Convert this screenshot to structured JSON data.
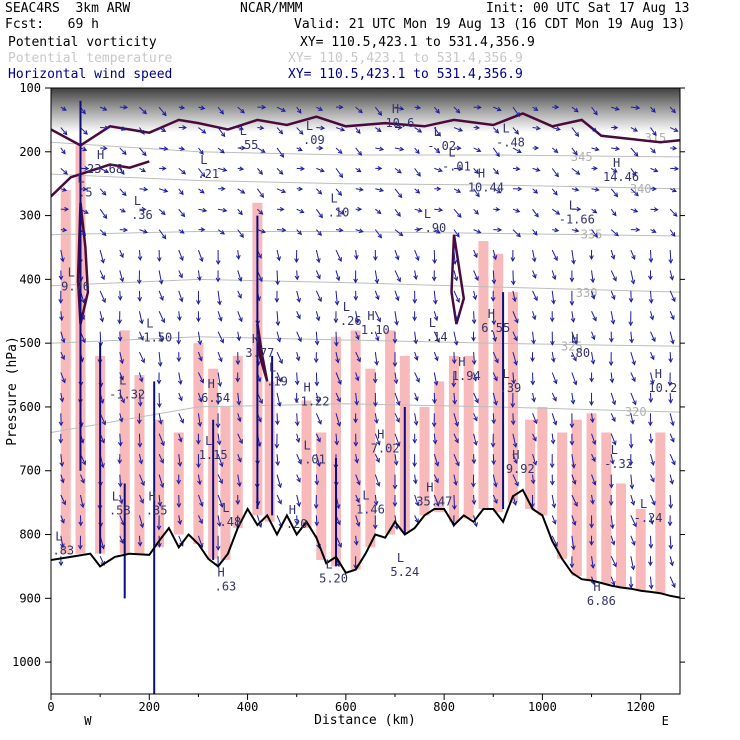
{
  "header": {
    "model": "SEAC4RS  3km ARW",
    "org": "NCAR/MMM",
    "init": "Init: 00 UTC Sat 17 Aug 13",
    "fcst": "Fcst:   69 h",
    "valid": "Valid: 21 UTC Mon 19 Aug 13 (16 CDT Mon 19 Aug 13)"
  },
  "fields": [
    {
      "name": "Potential vorticity",
      "xy": "XY= 110.5,423.1 to 531.4,356.9",
      "color": "#000000"
    },
    {
      "name": "Potential temperature",
      "xy": "XY= 110.5,423.1 to 531.4,356.9",
      "color": "#c8c8c8"
    },
    {
      "name": "Horizontal wind speed",
      "xy": "XY= 110.5,423.1 to 531.4,356.9",
      "color": "#00008b"
    }
  ],
  "chart_data": {
    "type": "cross-section",
    "xlabel": "Distance (km)",
    "ylabel": "Pressure (hPa)",
    "xlim": [
      0,
      1280
    ],
    "ylim": [
      1050,
      100
    ],
    "x_ticks": [
      0,
      200,
      400,
      600,
      800,
      1000,
      1200
    ],
    "y_ticks": [
      100,
      200,
      300,
      400,
      500,
      600,
      700,
      800,
      900,
      1000
    ],
    "x_ends": [
      "W",
      "E"
    ],
    "theta_labels": [
      {
        "value": "345",
        "x": 1080,
        "p": 208
      },
      {
        "value": "340",
        "x": 1200,
        "p": 258
      },
      {
        "value": "335",
        "x": 1100,
        "p": 330
      },
      {
        "value": "330",
        "x": 1090,
        "p": 421
      },
      {
        "value": "325",
        "x": 1060,
        "p": 505
      },
      {
        "value": "320",
        "x": 1190,
        "p": 608
      },
      {
        "value": "315",
        "x": 1230,
        "p": 178
      }
    ],
    "extrema_labels": [
      {
        "kind": "H",
        "value": "10.6",
        "x": 710,
        "p": 152
      },
      {
        "kind": "L",
        "value": ".55",
        "x": 400,
        "p": 186
      },
      {
        "kind": "L",
        "value": ".09",
        "x": 535,
        "p": 178
      },
      {
        "kind": "L",
        "value": "-.48",
        "x": 935,
        "p": 182
      },
      {
        "kind": "L",
        "value": "-.02",
        "x": 795,
        "p": 188
      },
      {
        "kind": "H",
        "value": "23.68",
        "x": 110,
        "p": 224
      },
      {
        "kind": "L",
        "value": ".21",
        "x": 320,
        "p": 232
      },
      {
        "kind": "L",
        "value": "-.01",
        "x": 825,
        "p": 220
      },
      {
        "kind": "H",
        "value": "10.44",
        "x": 885,
        "p": 253
      },
      {
        "kind": "H",
        "value": "14.46",
        "x": 1160,
        "p": 236
      },
      {
        "kind": "L",
        "value": ".5",
        "x": 70,
        "p": 261
      },
      {
        "kind": "L",
        "value": ".36",
        "x": 185,
        "p": 296
      },
      {
        "kind": "L",
        "value": ".10",
        "x": 585,
        "p": 292
      },
      {
        "kind": "L",
        "value": "-.90",
        "x": 775,
        "p": 316
      },
      {
        "kind": "L",
        "value": "-1.66",
        "x": 1070,
        "p": 303
      },
      {
        "kind": "L",
        "value": "9.76",
        "x": 50,
        "p": 408
      },
      {
        "kind": "L",
        "value": ".26",
        "x": 610,
        "p": 462
      },
      {
        "kind": "H",
        "value": "1.10",
        "x": 660,
        "p": 476
      },
      {
        "kind": "L",
        "value": ".14",
        "x": 785,
        "p": 487
      },
      {
        "kind": "H",
        "value": "6.55",
        "x": 905,
        "p": 473
      },
      {
        "kind": "L",
        "value": "-1.50",
        "x": 210,
        "p": 488
      },
      {
        "kind": "H",
        "value": "3.77",
        "x": 425,
        "p": 512
      },
      {
        "kind": "H",
        "value": ".80",
        "x": 1075,
        "p": 512
      },
      {
        "kind": "H",
        "value": "1.94",
        "x": 845,
        "p": 548
      },
      {
        "kind": "L",
        "value": ".19",
        "x": 460,
        "p": 557
      },
      {
        "kind": "L",
        "value": "-1.32",
        "x": 155,
        "p": 577
      },
      {
        "kind": "H",
        "value": "6.54",
        "x": 335,
        "p": 583
      },
      {
        "kind": "H",
        "value": "-1.22",
        "x": 530,
        "p": 588
      },
      {
        "kind": "L",
        "value": ".39",
        "x": 935,
        "p": 567
      },
      {
        "kind": "H",
        "value": "10.2",
        "x": 1245,
        "p": 567
      },
      {
        "kind": "L",
        "value": "1.15",
        "x": 330,
        "p": 672
      },
      {
        "kind": "H",
        "value": "7.02",
        "x": 680,
        "p": 662
      },
      {
        "kind": "L",
        "value": "-.01",
        "x": 530,
        "p": 679
      },
      {
        "kind": "L",
        "value": "-.32",
        "x": 1155,
        "p": 686
      },
      {
        "kind": "H",
        "value": "9.92",
        "x": 955,
        "p": 694
      },
      {
        "kind": "L",
        "value": ".58",
        "x": 140,
        "p": 759
      },
      {
        "kind": "H",
        "value": ".35",
        "x": 215,
        "p": 759
      },
      {
        "kind": "L",
        "value": "1.46",
        "x": 650,
        "p": 758
      },
      {
        "kind": "H",
        "value": "35.47",
        "x": 780,
        "p": 745
      },
      {
        "kind": "L",
        "value": ".48",
        "x": 365,
        "p": 777
      },
      {
        "kind": "L",
        "value": "-.24",
        "x": 1215,
        "p": 771
      },
      {
        "kind": "L",
        "value": ".83",
        "x": 25,
        "p": 822
      },
      {
        "kind": "H",
        "value": ".20",
        "x": 500,
        "p": 780
      },
      {
        "kind": "L",
        "value": "5.24",
        "x": 720,
        "p": 856
      },
      {
        "kind": "L",
        "value": "5.20",
        "x": 575,
        "p": 866
      },
      {
        "kind": "H",
        "value": ".63",
        "x": 355,
        "p": 878
      },
      {
        "kind": "H",
        "value": "6.86",
        "x": 1120,
        "p": 901
      }
    ],
    "terrain": [
      [
        0,
        840
      ],
      [
        40,
        835
      ],
      [
        80,
        830
      ],
      [
        100,
        850
      ],
      [
        130,
        835
      ],
      [
        160,
        830
      ],
      [
        200,
        832
      ],
      [
        220,
        810
      ],
      [
        240,
        790
      ],
      [
        260,
        820
      ],
      [
        280,
        800
      ],
      [
        300,
        815
      ],
      [
        320,
        838
      ],
      [
        340,
        850
      ],
      [
        360,
        830
      ],
      [
        380,
        790
      ],
      [
        400,
        760
      ],
      [
        420,
        785
      ],
      [
        440,
        770
      ],
      [
        460,
        800
      ],
      [
        480,
        770
      ],
      [
        500,
        800
      ],
      [
        520,
        780
      ],
      [
        540,
        805
      ],
      [
        560,
        845
      ],
      [
        580,
        835
      ],
      [
        600,
        860
      ],
      [
        620,
        855
      ],
      [
        640,
        830
      ],
      [
        660,
        800
      ],
      [
        680,
        805
      ],
      [
        700,
        780
      ],
      [
        720,
        800
      ],
      [
        740,
        790
      ],
      [
        760,
        770
      ],
      [
        780,
        760
      ],
      [
        800,
        760
      ],
      [
        820,
        785
      ],
      [
        840,
        770
      ],
      [
        860,
        780
      ],
      [
        880,
        760
      ],
      [
        900,
        760
      ],
      [
        920,
        780
      ],
      [
        940,
        740
      ],
      [
        960,
        730
      ],
      [
        980,
        760
      ],
      [
        1000,
        770
      ],
      [
        1020,
        810
      ],
      [
        1040,
        838
      ],
      [
        1060,
        860
      ],
      [
        1080,
        870
      ],
      [
        1100,
        872
      ],
      [
        1120,
        876
      ],
      [
        1140,
        880
      ],
      [
        1160,
        883
      ],
      [
        1180,
        885
      ],
      [
        1200,
        888
      ],
      [
        1220,
        890
      ],
      [
        1240,
        892
      ],
      [
        1260,
        896
      ],
      [
        1280,
        899
      ]
    ],
    "theta_lines": [
      {
        "value": "345",
        "pts": [
          [
            0,
            185
          ],
          [
            300,
            200
          ],
          [
            600,
            205
          ],
          [
            900,
            205
          ],
          [
            1280,
            208
          ]
        ]
      },
      {
        "value": "340",
        "pts": [
          [
            0,
            235
          ],
          [
            300,
            245
          ],
          [
            600,
            250
          ],
          [
            900,
            252
          ],
          [
            1280,
            258
          ]
        ]
      },
      {
        "value": "335",
        "pts": [
          [
            0,
            330
          ],
          [
            300,
            325
          ],
          [
            600,
            325
          ],
          [
            900,
            328
          ],
          [
            1280,
            332
          ]
        ]
      },
      {
        "value": "330",
        "pts": [
          [
            0,
            410
          ],
          [
            300,
            400
          ],
          [
            600,
            405
          ],
          [
            900,
            412
          ],
          [
            1280,
            420
          ]
        ]
      },
      {
        "value": "325",
        "pts": [
          [
            0,
            500
          ],
          [
            300,
            490
          ],
          [
            600,
            495
          ],
          [
            900,
            500
          ],
          [
            1280,
            505
          ]
        ]
      },
      {
        "value": "320",
        "pts": [
          [
            0,
            640
          ],
          [
            300,
            600
          ],
          [
            600,
            595
          ],
          [
            900,
            600
          ],
          [
            1280,
            608
          ]
        ]
      }
    ],
    "shading_columns": [
      {
        "x": 30,
        "ptop": 260,
        "pbot": 830
      },
      {
        "x": 60,
        "ptop": 190,
        "pbot": 830
      },
      {
        "x": 100,
        "ptop": 520,
        "pbot": 830
      },
      {
        "x": 150,
        "ptop": 480,
        "pbot": 830
      },
      {
        "x": 180,
        "ptop": 550,
        "pbot": 830
      },
      {
        "x": 220,
        "ptop": 620,
        "pbot": 820
      },
      {
        "x": 260,
        "ptop": 640,
        "pbot": 800
      },
      {
        "x": 300,
        "ptop": 500,
        "pbot": 815
      },
      {
        "x": 330,
        "ptop": 540,
        "pbot": 838
      },
      {
        "x": 355,
        "ptop": 600,
        "pbot": 840
      },
      {
        "x": 380,
        "ptop": 520,
        "pbot": 790
      },
      {
        "x": 420,
        "ptop": 280,
        "pbot": 770
      },
      {
        "x": 445,
        "ptop": 560,
        "pbot": 780
      },
      {
        "x": 520,
        "ptop": 590,
        "pbot": 790
      },
      {
        "x": 550,
        "ptop": 640,
        "pbot": 840
      },
      {
        "x": 580,
        "ptop": 490,
        "pbot": 850
      },
      {
        "x": 620,
        "ptop": 480,
        "pbot": 855
      },
      {
        "x": 650,
        "ptop": 540,
        "pbot": 820
      },
      {
        "x": 690,
        "ptop": 480,
        "pbot": 800
      },
      {
        "x": 720,
        "ptop": 520,
        "pbot": 795
      },
      {
        "x": 760,
        "ptop": 600,
        "pbot": 770
      },
      {
        "x": 790,
        "ptop": 560,
        "pbot": 765
      },
      {
        "x": 820,
        "ptop": 520,
        "pbot": 780
      },
      {
        "x": 850,
        "ptop": 520,
        "pbot": 775
      },
      {
        "x": 880,
        "ptop": 340,
        "pbot": 760
      },
      {
        "x": 910,
        "ptop": 360,
        "pbot": 765
      },
      {
        "x": 940,
        "ptop": 420,
        "pbot": 750
      },
      {
        "x": 975,
        "ptop": 620,
        "pbot": 760
      },
      {
        "x": 1000,
        "ptop": 600,
        "pbot": 770
      },
      {
        "x": 1040,
        "ptop": 640,
        "pbot": 838
      },
      {
        "x": 1070,
        "ptop": 620,
        "pbot": 865
      },
      {
        "x": 1100,
        "ptop": 610,
        "pbot": 873
      },
      {
        "x": 1130,
        "ptop": 640,
        "pbot": 878
      },
      {
        "x": 1160,
        "ptop": 720,
        "pbot": 883
      },
      {
        "x": 1200,
        "ptop": 760,
        "pbot": 888
      },
      {
        "x": 1240,
        "ptop": 640,
        "pbot": 892
      }
    ],
    "pv_contours": [
      [
        [
          0,
          165
        ],
        [
          60,
          190
        ],
        [
          120,
          160
        ],
        [
          200,
          170
        ],
        [
          260,
          150
        ],
        [
          300,
          155
        ],
        [
          360,
          165
        ],
        [
          420,
          150
        ],
        [
          480,
          158
        ],
        [
          540,
          145
        ],
        [
          600,
          160
        ],
        [
          680,
          155
        ],
        [
          760,
          160
        ],
        [
          820,
          150
        ],
        [
          900,
          158
        ],
        [
          960,
          140
        ],
        [
          1020,
          160
        ],
        [
          1080,
          150
        ],
        [
          1120,
          175
        ],
        [
          1180,
          180
        ],
        [
          1240,
          185
        ],
        [
          1280,
          182
        ]
      ],
      [
        [
          0,
          270
        ],
        [
          40,
          240
        ],
        [
          80,
          230
        ],
        [
          120,
          220
        ],
        [
          160,
          225
        ],
        [
          200,
          215
        ]
      ],
      [
        [
          820,
          330
        ],
        [
          830,
          380
        ],
        [
          840,
          430
        ],
        [
          825,
          470
        ],
        [
          815,
          420
        ],
        [
          820,
          330
        ]
      ],
      [
        [
          420,
          470
        ],
        [
          430,
          520
        ],
        [
          440,
          560
        ],
        [
          425,
          520
        ],
        [
          420,
          470
        ]
      ],
      [
        [
          60,
          280
        ],
        [
          70,
          350
        ],
        [
          75,
          420
        ],
        [
          60,
          470
        ],
        [
          55,
          400
        ],
        [
          60,
          280
        ]
      ]
    ]
  }
}
